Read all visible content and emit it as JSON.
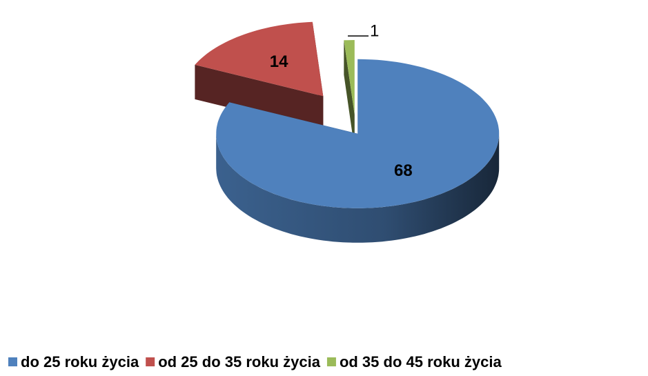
{
  "chart_data": {
    "type": "pie3d",
    "categories": [
      "do 25 roku życia",
      "od 25 do 35 roku życia",
      "od 35 do 45 roku życia"
    ],
    "values": [
      68,
      14,
      1
    ],
    "colors": [
      "#4f81bd",
      "#c0504d",
      "#9bbb59"
    ],
    "legend": "bottom"
  }
}
